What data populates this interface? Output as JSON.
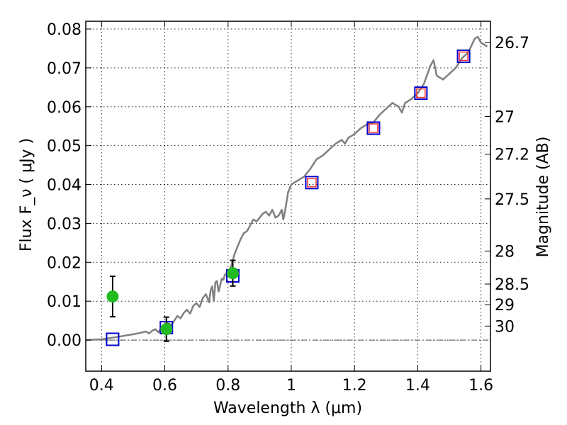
{
  "chart_data": {
    "type": "scatter",
    "title": "",
    "xlabel": "Wavelength  λ (μm)",
    "ylabel": "Flux  F_ν  ( μJy )",
    "ylabel_right": "Magnitude (AB)",
    "xlim": [
      0.35,
      1.63
    ],
    "ylim": [
      -0.008,
      0.082
    ],
    "xticks": [
      0.4,
      0.6,
      0.8,
      1.0,
      1.2,
      1.4,
      1.6
    ],
    "xtick_labels": [
      "0.4",
      "0.6",
      "0.8",
      "1",
      "1.2",
      "1.4",
      "1.6"
    ],
    "yticks": [
      0.0,
      0.01,
      0.02,
      0.03,
      0.04,
      0.05,
      0.06,
      0.07,
      0.08
    ],
    "ytick_labels": [
      "0.00",
      "0.01",
      "0.02",
      "0.03",
      "0.04",
      "0.05",
      "0.06",
      "0.07",
      "0.08"
    ],
    "right_ticks": [
      {
        "label": "26.7",
        "flux": 0.0765
      },
      {
        "label": "27",
        "flux": 0.0575
      },
      {
        "label": "27.2",
        "flux": 0.0478
      },
      {
        "label": "27.5",
        "flux": 0.0363
      },
      {
        "label": "28",
        "flux": 0.0229
      },
      {
        "label": "28.5",
        "flux": 0.0144
      },
      {
        "label": "29",
        "flux": 0.0091
      },
      {
        "label": "30",
        "flux": 0.0036
      }
    ],
    "grid": true,
    "series": [
      {
        "kind": "line",
        "color": "#808080",
        "x": [
          0.35,
          0.4,
          0.45,
          0.5,
          0.52,
          0.54,
          0.55,
          0.56,
          0.57,
          0.58,
          0.59,
          0.6,
          0.61,
          0.62,
          0.63,
          0.64,
          0.65,
          0.66,
          0.67,
          0.68,
          0.69,
          0.7,
          0.71,
          0.72,
          0.73,
          0.74,
          0.745,
          0.75,
          0.755,
          0.76,
          0.765,
          0.77,
          0.775,
          0.78,
          0.785,
          0.79,
          0.8,
          0.81,
          0.82,
          0.83,
          0.84,
          0.85,
          0.86,
          0.87,
          0.88,
          0.89,
          0.9,
          0.91,
          0.92,
          0.93,
          0.94,
          0.95,
          0.96,
          0.97,
          0.975,
          0.98,
          0.99,
          1.0,
          1.01,
          1.02,
          1.03,
          1.04,
          1.06,
          1.08,
          1.1,
          1.12,
          1.14,
          1.16,
          1.17,
          1.18,
          1.2,
          1.22,
          1.24,
          1.26,
          1.28,
          1.3,
          1.32,
          1.34,
          1.35,
          1.36,
          1.38,
          1.4,
          1.42,
          1.44,
          1.45,
          1.46,
          1.48,
          1.5,
          1.52,
          1.54,
          1.56,
          1.58,
          1.59,
          1.6,
          1.62
        ],
        "y": [
          0.0,
          0.0002,
          0.0008,
          0.0015,
          0.0018,
          0.0022,
          0.0017,
          0.0024,
          0.0028,
          0.002,
          0.0032,
          0.0035,
          0.0045,
          0.0038,
          0.005,
          0.0062,
          0.0056,
          0.007,
          0.0078,
          0.0068,
          0.0088,
          0.0095,
          0.0085,
          0.0108,
          0.0118,
          0.0097,
          0.0128,
          0.0138,
          0.01,
          0.0148,
          0.0152,
          0.0125,
          0.014,
          0.0158,
          0.0155,
          0.0168,
          0.0175,
          0.019,
          0.022,
          0.024,
          0.026,
          0.0275,
          0.028,
          0.0295,
          0.031,
          0.0305,
          0.0315,
          0.0325,
          0.033,
          0.032,
          0.0335,
          0.0315,
          0.032,
          0.0335,
          0.031,
          0.033,
          0.038,
          0.04,
          0.0405,
          0.041,
          0.0415,
          0.042,
          0.044,
          0.0465,
          0.0475,
          0.049,
          0.0505,
          0.0515,
          0.0505,
          0.052,
          0.053,
          0.0545,
          0.0555,
          0.056,
          0.058,
          0.0595,
          0.061,
          0.06,
          0.0585,
          0.061,
          0.062,
          0.0635,
          0.066,
          0.0705,
          0.072,
          0.068,
          0.067,
          0.0685,
          0.07,
          0.0725,
          0.074,
          0.0775,
          0.078,
          0.0765,
          0.0755
        ]
      },
      {
        "kind": "open-square",
        "color": "#0000cc",
        "x": [
          0.435,
          0.605,
          0.815,
          1.065,
          1.26,
          1.41,
          1.545
        ],
        "y": [
          0.0002,
          0.0032,
          0.0165,
          0.0405,
          0.0545,
          0.0635,
          0.073
        ]
      },
      {
        "kind": "open-square",
        "color": "#ee3333",
        "x": [
          1.065,
          1.26,
          1.41,
          1.545
        ],
        "y": [
          0.0405,
          0.0545,
          0.0635,
          0.073
        ]
      },
      {
        "kind": "filled-circle-errorbar",
        "color": "#22bb22",
        "x": [
          0.435,
          0.605,
          0.815
        ],
        "y": [
          0.0112,
          0.0028,
          0.0172
        ],
        "yerr": [
          0.0052,
          0.0031,
          0.0033
        ]
      }
    ],
    "reference_line": {
      "y": 0.0,
      "style": "dash-dot",
      "color": "#555555"
    }
  }
}
